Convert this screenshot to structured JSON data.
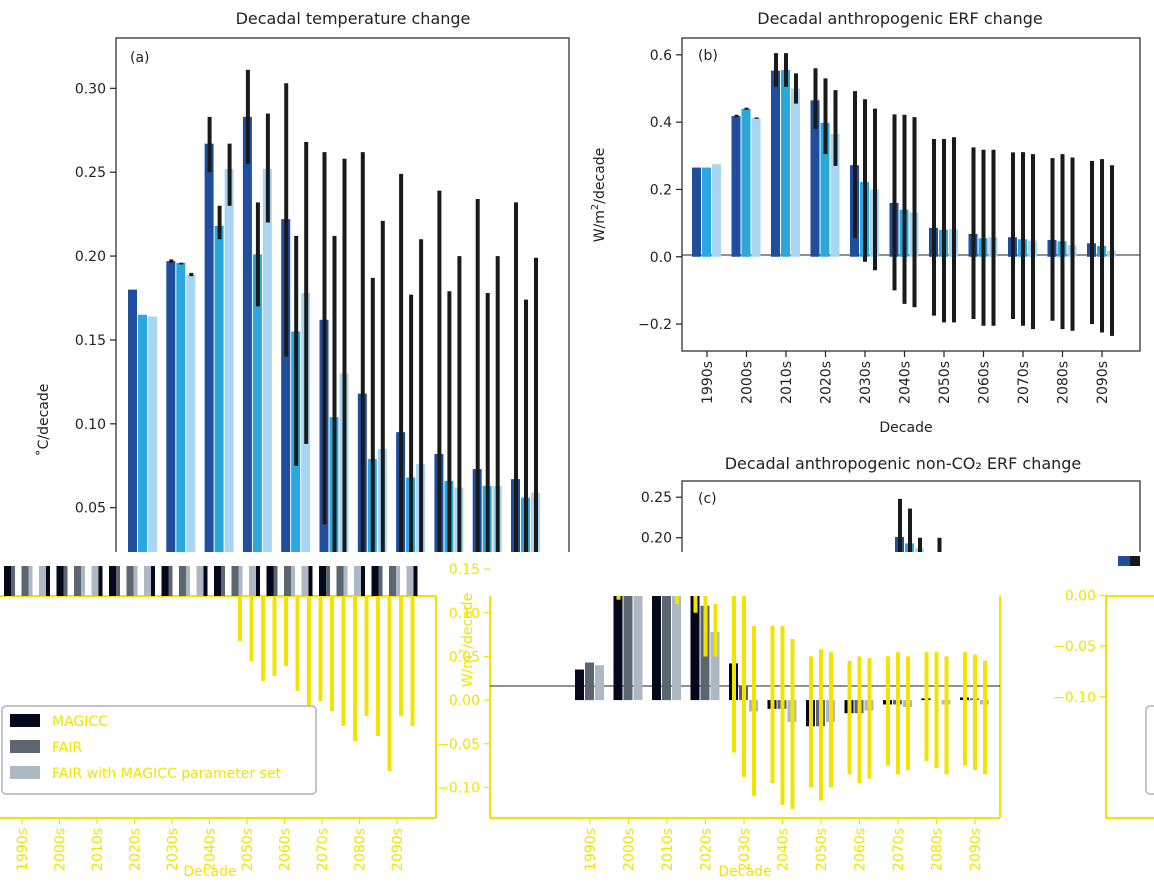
{
  "chart_data": [
    {
      "type": "bar",
      "title": "Decadal temperature change",
      "panel_label": "(a)",
      "ylabel": "˚C/decade",
      "ylim": [
        0.02,
        0.33
      ],
      "yticks": [
        0.05,
        0.1,
        0.15,
        0.2,
        0.25,
        0.3
      ],
      "ytick_labels": [
        "0.05",
        "0.10",
        "0.15",
        "0.20",
        "0.25",
        "0.30"
      ],
      "categories": [
        "1990s",
        "2000s",
        "2010s",
        "2020s",
        "2030s",
        "2040s",
        "2050s",
        "2060s",
        "2070s",
        "2080s",
        "2090s"
      ],
      "series": [
        {
          "values": [
            0.18,
            0.197,
            0.267,
            0.283,
            0.222,
            0.162,
            0.118,
            0.095,
            0.082,
            0.073,
            0.067
          ],
          "err_low": [
            0.18,
            0.196,
            0.25,
            0.255,
            0.14,
            0.04,
            0.02,
            0.02,
            0.02,
            0.02,
            0.02
          ],
          "err_high": [
            0.18,
            0.198,
            0.283,
            0.311,
            0.303,
            0.262,
            0.262,
            0.249,
            0.239,
            0.234,
            0.232
          ]
        },
        {
          "values": [
            0.165,
            0.196,
            0.218,
            0.201,
            0.155,
            0.104,
            0.079,
            0.068,
            0.066,
            0.063,
            0.056
          ],
          "err_low": [
            0.165,
            0.195,
            0.21,
            0.17,
            0.075,
            0.02,
            0.02,
            0.02,
            0.02,
            0.02,
            0.02
          ],
          "err_high": [
            0.165,
            0.196,
            0.23,
            0.232,
            0.212,
            0.212,
            0.187,
            0.177,
            0.179,
            0.178,
            0.174
          ]
        },
        {
          "values": [
            0.164,
            0.189,
            0.252,
            0.252,
            0.178,
            0.13,
            0.085,
            0.076,
            0.062,
            0.063,
            0.059
          ],
          "err_low": [
            0.164,
            0.188,
            0.23,
            0.22,
            0.088,
            0.02,
            0.02,
            0.02,
            0.02,
            0.02,
            0.02
          ],
          "err_high": [
            0.164,
            0.19,
            0.267,
            0.285,
            0.268,
            0.258,
            0.221,
            0.21,
            0.2,
            0.2,
            0.199
          ]
        }
      ],
      "colors": [
        "#1f4e9e",
        "#2aa7dc",
        "#a8d5f0"
      ]
    },
    {
      "type": "bar",
      "title": "Decadal anthropogenic ERF change",
      "panel_label": "(b)",
      "ylabel": "W/m2/decade",
      "xlabel": "Decade",
      "ylim": [
        -0.28,
        0.65
      ],
      "yticks": [
        -0.2,
        0.0,
        0.2,
        0.4,
        0.6
      ],
      "ytick_labels": [
        "−0.2",
        "0.0",
        "0.2",
        "0.4",
        "0.6"
      ],
      "categories": [
        "1990s",
        "2000s",
        "2010s",
        "2020s",
        "2030s",
        "2040s",
        "2050s",
        "2060s",
        "2070s",
        "2080s",
        "2090s"
      ],
      "series": [
        {
          "values": [
            0.265,
            0.418,
            0.553,
            0.465,
            0.272,
            0.16,
            0.086,
            0.068,
            0.058,
            0.05,
            0.04
          ],
          "err_low": [
            0.265,
            0.415,
            0.505,
            0.38,
            0.055,
            -0.1,
            -0.175,
            -0.185,
            -0.185,
            -0.19,
            -0.2
          ],
          "err_high": [
            0.265,
            0.422,
            0.605,
            0.56,
            0.492,
            0.423,
            0.35,
            0.325,
            0.31,
            0.293,
            0.285
          ]
        },
        {
          "values": [
            0.265,
            0.44,
            0.555,
            0.398,
            0.222,
            0.14,
            0.08,
            0.055,
            0.052,
            0.046,
            0.032
          ],
          "err_low": [
            0.265,
            0.437,
            0.505,
            0.305,
            -0.015,
            -0.14,
            -0.195,
            -0.205,
            -0.205,
            -0.215,
            -0.225
          ],
          "err_high": [
            0.265,
            0.443,
            0.605,
            0.53,
            0.468,
            0.422,
            0.35,
            0.318,
            0.311,
            0.305,
            0.29
          ]
        },
        {
          "values": [
            0.275,
            0.412,
            0.5,
            0.365,
            0.2,
            0.132,
            0.082,
            0.058,
            0.048,
            0.035,
            0.018
          ],
          "err_low": [
            0.275,
            0.41,
            0.455,
            0.27,
            -0.04,
            -0.15,
            -0.195,
            -0.205,
            -0.215,
            -0.22,
            -0.235
          ],
          "err_high": [
            0.275,
            0.414,
            0.545,
            0.495,
            0.44,
            0.415,
            0.355,
            0.318,
            0.305,
            0.295,
            0.272
          ]
        }
      ],
      "colors": [
        "#1f4e9e",
        "#2aa7dc",
        "#a8d5f0"
      ]
    },
    {
      "type": "bar",
      "title": "Decadal anthropogenic non-CO₂ ERF change",
      "panel_label": "(c)",
      "ylim": [
        0.175,
        0.27
      ],
      "yticks": [
        0.2,
        0.25
      ],
      "ytick_labels": [
        "0.20",
        "0.25"
      ],
      "bars": [
        {
          "category_index": 4,
          "series_index": 0,
          "value": 0.201,
          "err_high": 0.248
        },
        {
          "category_index": 4,
          "series_index": 1,
          "value": 0.193,
          "err_high": 0.236
        },
        {
          "category_index": 4,
          "series_index": 2,
          "value": 0.187,
          "err_high": 0.2
        },
        {
          "category_index": 5,
          "series_index": 0,
          "value": 0.18,
          "err_high": 0.2
        }
      ],
      "colors": [
        "#1f4e9e",
        "#2aa7dc",
        "#a8d5f0"
      ]
    },
    {
      "type": "bar",
      "overlay_panel": "bottom-left",
      "xlabel": "Decade",
      "categories": [
        "1990s",
        "2000s",
        "2010s",
        "2020s",
        "2030s",
        "2040s",
        "2050s",
        "2060s",
        "2070s",
        "2080s",
        "2090s"
      ],
      "legend": [
        "MAGICC",
        "FAIR",
        "FAIR with MAGICC parameter set"
      ],
      "legend_position": "lower-left",
      "negative_bars": [
        -0.045,
        -0.065,
        -0.085,
        -0.08,
        -0.07,
        -0.095,
        -0.12,
        -0.105,
        -0.115,
        -0.13,
        -0.145,
        -0.12,
        -0.14,
        -0.175,
        -0.12,
        -0.13
      ]
    },
    {
      "type": "bar",
      "overlay_panel": "bottom-middle",
      "ylabel": "W/m2/decade",
      "xlabel": "Decade",
      "ylim": [
        -0.135,
        0.165
      ],
      "yticks": [
        -0.1,
        -0.05,
        0.0,
        0.05,
        0.1,
        0.15
      ],
      "ytick_labels": [
        "−0.10",
        "−0.05",
        "0.00",
        "0.05",
        "0.10",
        "0.15"
      ],
      "categories": [
        "1990s",
        "2000s",
        "2010s",
        "2020s",
        "2030s",
        "2040s",
        "2050s",
        "2060s",
        "2070s",
        "2080s",
        "2090s"
      ],
      "series": [
        {
          "values": [
            0.035,
            0.125,
            0.16,
            0.15,
            0.042,
            -0.01,
            -0.03,
            -0.015,
            -0.005,
            0.002,
            0.003
          ],
          "err_low": [
            0.035,
            0.115,
            0.15,
            0.1,
            -0.06,
            -0.095,
            -0.1,
            -0.085,
            -0.075,
            -0.07,
            -0.075
          ],
          "err_high": [
            0.035,
            0.135,
            0.17,
            0.165,
            0.14,
            0.085,
            0.05,
            0.045,
            0.05,
            0.055,
            0.055
          ]
        },
        {
          "values": [
            0.043,
            0.15,
            0.16,
            0.108,
            0.017,
            -0.01,
            -0.03,
            -0.015,
            -0.005,
            0.0,
            0.002
          ],
          "err_low": [
            0.043,
            0.14,
            0.15,
            0.05,
            -0.088,
            -0.12,
            -0.115,
            -0.095,
            -0.085,
            -0.078,
            -0.08
          ],
          "err_high": [
            0.043,
            0.16,
            0.17,
            0.16,
            0.12,
            0.085,
            0.058,
            0.05,
            0.055,
            0.055,
            0.052
          ]
        },
        {
          "values": [
            0.04,
            0.132,
            0.128,
            0.078,
            -0.013,
            -0.025,
            -0.025,
            -0.012,
            -0.008,
            -0.005,
            -0.005
          ],
          "err_low": [
            0.04,
            0.125,
            0.11,
            0.05,
            -0.11,
            -0.125,
            -0.1,
            -0.09,
            -0.08,
            -0.085,
            -0.085
          ],
          "err_high": [
            0.04,
            0.14,
            0.145,
            0.11,
            0.085,
            0.07,
            0.055,
            0.048,
            0.05,
            0.05,
            0.045
          ]
        }
      ],
      "colors": [
        "#05071a",
        "#5c6670",
        "#aeb8c2"
      ]
    },
    {
      "type": "bar",
      "overlay_panel": "bottom-right",
      "ylim": [
        -0.115,
        0.02
      ],
      "yticks": [
        -0.1,
        -0.05,
        0.0
      ],
      "ytick_labels": [
        "−0.10",
        "−0.05",
        "0.00"
      ]
    }
  ]
}
